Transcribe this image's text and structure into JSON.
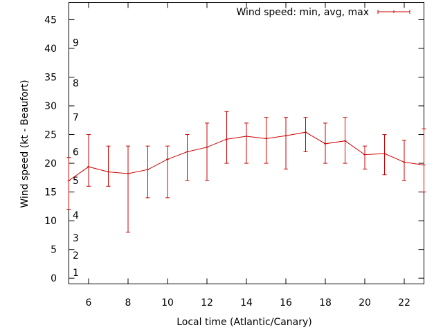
{
  "chart_data": {
    "type": "line",
    "title": "",
    "xlabel": "Local time (Atlantic/Canary)",
    "ylabel": "Wind speed (kt - Beaufort)",
    "xlim": [
      5,
      23
    ],
    "ylim": [
      -1,
      48
    ],
    "x_ticks": [
      6,
      8,
      10,
      12,
      14,
      16,
      18,
      20,
      22
    ],
    "y_ticks": [
      0,
      5,
      10,
      15,
      20,
      25,
      30,
      35,
      40,
      45
    ],
    "x_tick_labels": [
      "6",
      "8",
      "10",
      "12",
      "14",
      "16",
      "18",
      "20",
      "22"
    ],
    "y_tick_labels": [
      "0",
      "5",
      "10",
      "15",
      "20",
      "25",
      "30",
      "35",
      "40",
      "45"
    ],
    "beaufort_labels": [
      {
        "label": "1",
        "value": 1
      },
      {
        "label": "2",
        "value": 4
      },
      {
        "label": "3",
        "value": 7
      },
      {
        "label": "4",
        "value": 11
      },
      {
        "label": "5",
        "value": 17
      },
      {
        "label": "6",
        "value": 22
      },
      {
        "label": "7",
        "value": 28
      },
      {
        "label": "8",
        "value": 34
      },
      {
        "label": "9",
        "value": 41
      }
    ],
    "legend": {
      "label": "Wind speed: min, avg, max",
      "position": "top-right"
    },
    "color": "#cc0000",
    "series": [
      {
        "name": "Wind speed: min, avg, max",
        "x": [
          5,
          6,
          7,
          8,
          9,
          10,
          11,
          12,
          13,
          14,
          15,
          16,
          17,
          18,
          19,
          20,
          21,
          22,
          23
        ],
        "avg": [
          17,
          19.4,
          18.5,
          18.2,
          18.9,
          20.7,
          22,
          22.8,
          24.2,
          24.7,
          24.3,
          24.8,
          25.4,
          23.4,
          23.9,
          21.5,
          21.7,
          20.2,
          19.7
        ],
        "min": [
          12,
          16,
          16,
          8,
          14,
          14,
          17,
          17,
          20,
          20,
          20,
          19,
          22,
          20,
          20,
          19,
          18,
          17,
          15
        ],
        "max": [
          21,
          25,
          23,
          23,
          23,
          23,
          25,
          27,
          29,
          27,
          28,
          28,
          28,
          27,
          28,
          23,
          25,
          24,
          26
        ]
      }
    ]
  }
}
